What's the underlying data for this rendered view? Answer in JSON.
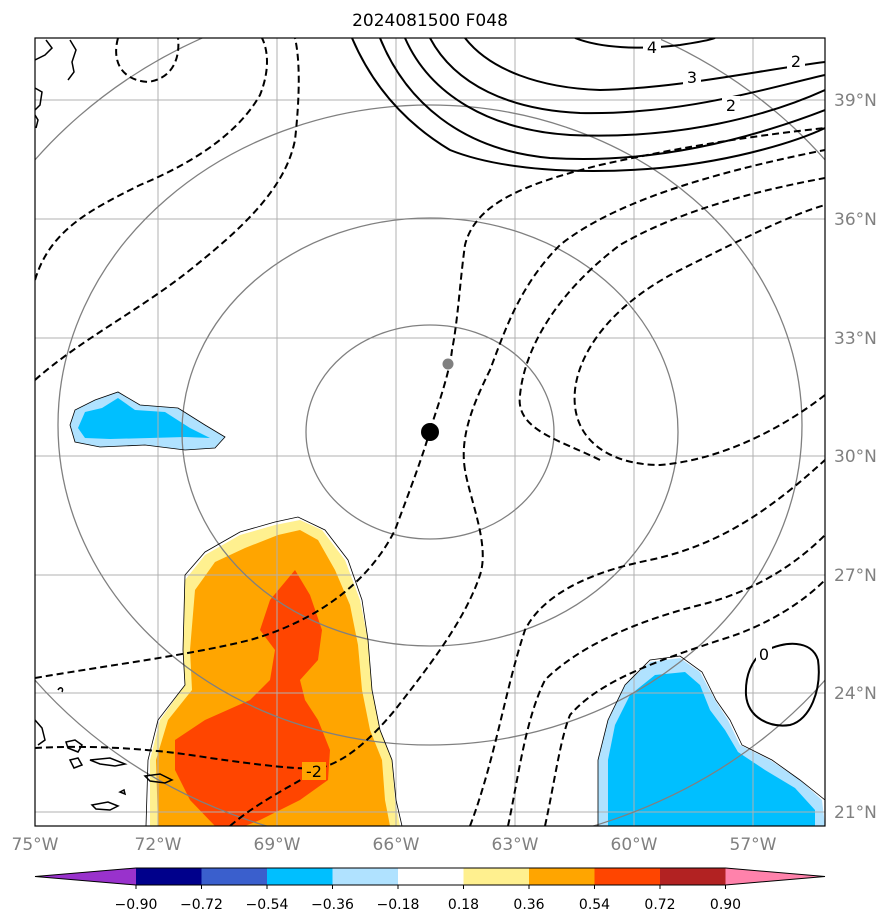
{
  "title": "2024081500 F048",
  "lon_ticks": [
    "75°W",
    "72°W",
    "69°W",
    "66°W",
    "63°W",
    "60°W",
    "57°W"
  ],
  "lat_ticks": [
    "39°N",
    "36°N",
    "33°N",
    "30°N",
    "27°N",
    "24°N",
    "21°N"
  ],
  "colorbar": {
    "labels": [
      "−0.90",
      "−0.72",
      "−0.54",
      "−0.36",
      "−0.18",
      "0.18",
      "0.36",
      "0.54",
      "0.72",
      "0.90"
    ],
    "colors": [
      "#9932cc",
      "#00008b",
      "#3a5fcd",
      "#00bfff",
      "#b0e2ff",
      "#ffffff",
      "#fff08f",
      "#ffa500",
      "#ff4500",
      "#b22222",
      "#ff82ab"
    ]
  },
  "contour_labels": {
    "c4": "4",
    "c3": "3",
    "c2a": "2",
    "c2b": "2",
    "cneg2": "-2",
    "c0": "0"
  },
  "storm_center": {
    "lon": -65.0,
    "lat": 30.6
  },
  "colors": {
    "grid": "#b0b0b0",
    "rings": "#808080",
    "contour": "#000000",
    "orange": "#ffa500",
    "red_orange": "#ff4500",
    "light_yellow": "#fff08f",
    "light_blue": "#b0e2ff",
    "deep_sky_blue": "#00bfff"
  }
}
